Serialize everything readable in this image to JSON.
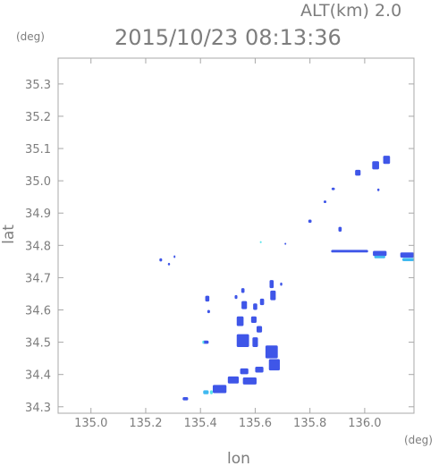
{
  "chart_data": {
    "type": "scatter",
    "title": "2015/10/23 08:13:36",
    "subtitle": "ALT(km)  2.0",
    "xlabel": "lon",
    "ylabel": "lat",
    "x_unit": "(deg)",
    "y_unit": "(deg)",
    "xlim": [
      134.88,
      136.18
    ],
    "ylim": [
      34.28,
      35.38
    ],
    "xticks": [
      "135.0",
      "135.2",
      "135.4",
      "135.6",
      "135.8",
      "136.0"
    ],
    "yticks": [
      "34.3",
      "34.4",
      "34.5",
      "34.6",
      "34.7",
      "34.8",
      "34.9",
      "35.0",
      "35.1",
      "35.2",
      "35.3"
    ],
    "grid": false,
    "colors": {
      "frame": "#a8a8a8",
      "text": "#7d7d7d",
      "echo_blue": "#3f56e8",
      "echo_light": "#3fb9f0",
      "echo_cyan": "#55e3ea"
    },
    "echoes": [
      {
        "lon": 135.255,
        "lat": 34.755,
        "w": 0.01,
        "h": 0.01,
        "c": "blue"
      },
      {
        "lon": 135.285,
        "lat": 34.742,
        "w": 0.008,
        "h": 0.008,
        "c": "blue"
      },
      {
        "lon": 135.305,
        "lat": 34.765,
        "w": 0.006,
        "h": 0.008,
        "c": "blue"
      },
      {
        "lon": 135.345,
        "lat": 34.325,
        "w": 0.02,
        "h": 0.01,
        "c": "blue"
      },
      {
        "lon": 135.42,
        "lat": 34.345,
        "w": 0.02,
        "h": 0.012,
        "c": "light"
      },
      {
        "lon": 135.44,
        "lat": 34.345,
        "w": 0.01,
        "h": 0.012,
        "c": "cyan"
      },
      {
        "lon": 135.47,
        "lat": 34.355,
        "w": 0.05,
        "h": 0.025,
        "c": "blue"
      },
      {
        "lon": 135.52,
        "lat": 34.383,
        "w": 0.04,
        "h": 0.022,
        "c": "blue"
      },
      {
        "lon": 135.58,
        "lat": 34.38,
        "w": 0.05,
        "h": 0.022,
        "c": "blue"
      },
      {
        "lon": 135.56,
        "lat": 34.41,
        "w": 0.03,
        "h": 0.018,
        "c": "blue"
      },
      {
        "lon": 135.615,
        "lat": 34.415,
        "w": 0.03,
        "h": 0.018,
        "c": "blue"
      },
      {
        "lon": 135.67,
        "lat": 34.43,
        "w": 0.04,
        "h": 0.035,
        "c": "blue"
      },
      {
        "lon": 135.66,
        "lat": 34.47,
        "w": 0.045,
        "h": 0.04,
        "c": "blue"
      },
      {
        "lon": 135.555,
        "lat": 34.505,
        "w": 0.045,
        "h": 0.04,
        "c": "blue"
      },
      {
        "lon": 135.6,
        "lat": 34.5,
        "w": 0.02,
        "h": 0.03,
        "c": "blue"
      },
      {
        "lon": 135.615,
        "lat": 34.54,
        "w": 0.02,
        "h": 0.02,
        "c": "blue"
      },
      {
        "lon": 135.545,
        "lat": 34.565,
        "w": 0.025,
        "h": 0.03,
        "c": "blue"
      },
      {
        "lon": 135.595,
        "lat": 34.57,
        "w": 0.02,
        "h": 0.02,
        "c": "blue"
      },
      {
        "lon": 135.56,
        "lat": 34.615,
        "w": 0.02,
        "h": 0.025,
        "c": "blue"
      },
      {
        "lon": 135.6,
        "lat": 34.61,
        "w": 0.015,
        "h": 0.02,
        "c": "blue"
      },
      {
        "lon": 135.625,
        "lat": 34.625,
        "w": 0.015,
        "h": 0.02,
        "c": "blue"
      },
      {
        "lon": 135.665,
        "lat": 34.645,
        "w": 0.02,
        "h": 0.03,
        "c": "blue"
      },
      {
        "lon": 135.66,
        "lat": 34.68,
        "w": 0.015,
        "h": 0.025,
        "c": "blue"
      },
      {
        "lon": 135.555,
        "lat": 34.66,
        "w": 0.012,
        "h": 0.015,
        "c": "blue"
      },
      {
        "lon": 135.53,
        "lat": 34.64,
        "w": 0.01,
        "h": 0.012,
        "c": "blue"
      },
      {
        "lon": 135.695,
        "lat": 34.68,
        "w": 0.008,
        "h": 0.01,
        "c": "blue"
      },
      {
        "lon": 135.425,
        "lat": 34.635,
        "w": 0.015,
        "h": 0.018,
        "c": "blue"
      },
      {
        "lon": 135.43,
        "lat": 34.595,
        "w": 0.01,
        "h": 0.01,
        "c": "blue"
      },
      {
        "lon": 135.42,
        "lat": 34.5,
        "w": 0.02,
        "h": 0.01,
        "c": "blue"
      },
      {
        "lon": 135.41,
        "lat": 34.5,
        "w": 0.006,
        "h": 0.01,
        "c": "cyan"
      },
      {
        "lon": 135.62,
        "lat": 34.81,
        "w": 0.006,
        "h": 0.006,
        "c": "cyan"
      },
      {
        "lon": 135.71,
        "lat": 34.805,
        "w": 0.006,
        "h": 0.006,
        "c": "blue"
      },
      {
        "lon": 135.8,
        "lat": 34.875,
        "w": 0.012,
        "h": 0.01,
        "c": "blue"
      },
      {
        "lon": 135.855,
        "lat": 34.935,
        "w": 0.01,
        "h": 0.008,
        "c": "blue"
      },
      {
        "lon": 135.885,
        "lat": 34.975,
        "w": 0.012,
        "h": 0.008,
        "c": "blue"
      },
      {
        "lon": 135.91,
        "lat": 34.85,
        "w": 0.012,
        "h": 0.015,
        "c": "blue"
      },
      {
        "lon": 135.975,
        "lat": 35.025,
        "w": 0.02,
        "h": 0.018,
        "c": "blue"
      },
      {
        "lon": 136.04,
        "lat": 35.048,
        "w": 0.025,
        "h": 0.025,
        "c": "blue"
      },
      {
        "lon": 136.08,
        "lat": 35.065,
        "w": 0.025,
        "h": 0.025,
        "c": "blue"
      },
      {
        "lon": 136.05,
        "lat": 34.972,
        "w": 0.008,
        "h": 0.008,
        "c": "blue"
      },
      {
        "lon": 135.945,
        "lat": 34.782,
        "w": 0.135,
        "h": 0.008,
        "c": "blue"
      },
      {
        "lon": 136.055,
        "lat": 34.775,
        "w": 0.05,
        "h": 0.016,
        "c": "blue"
      },
      {
        "lon": 136.055,
        "lat": 34.764,
        "w": 0.04,
        "h": 0.008,
        "c": "light"
      },
      {
        "lon": 136.16,
        "lat": 34.77,
        "w": 0.06,
        "h": 0.016,
        "c": "blue"
      },
      {
        "lon": 136.165,
        "lat": 34.756,
        "w": 0.055,
        "h": 0.01,
        "c": "light"
      }
    ]
  }
}
